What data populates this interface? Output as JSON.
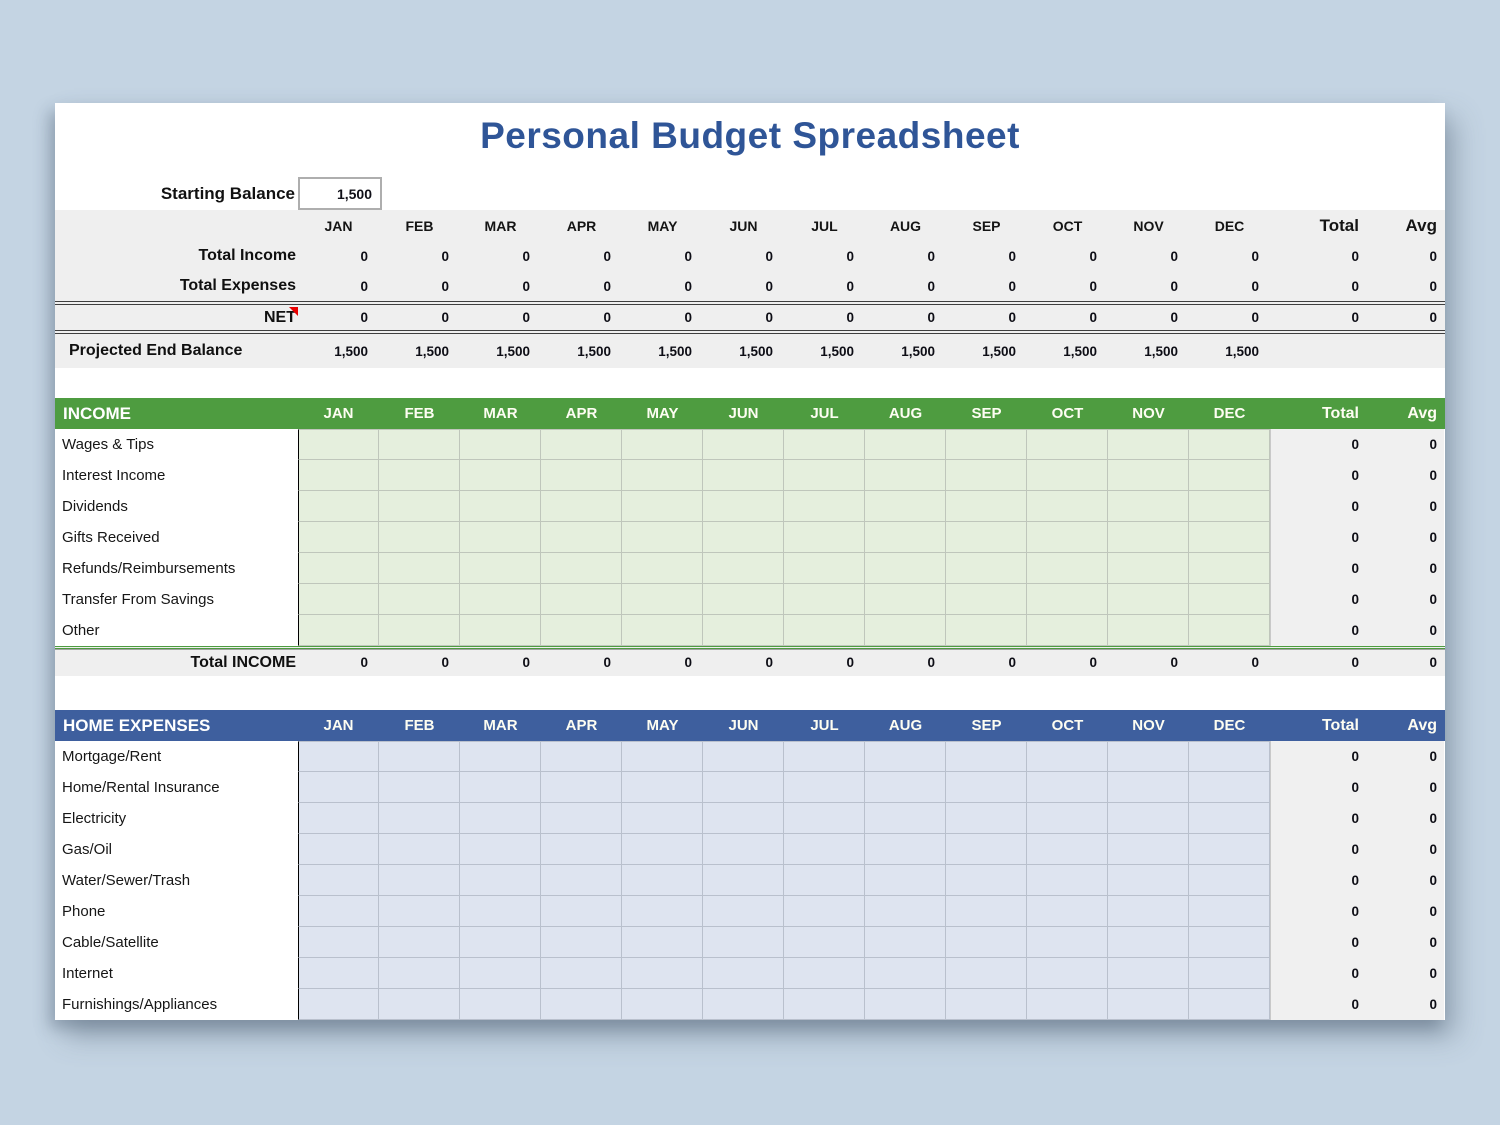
{
  "title": "Personal Budget Spreadsheet",
  "months": [
    "JAN",
    "FEB",
    "MAR",
    "APR",
    "MAY",
    "JUN",
    "JUL",
    "AUG",
    "SEP",
    "OCT",
    "NOV",
    "DEC"
  ],
  "labels": {
    "total": "Total",
    "avg": "Avg"
  },
  "starting_balance": {
    "label": "Starting Balance",
    "value": "1,500"
  },
  "summary": {
    "rows": [
      {
        "label": "Total Income",
        "values": [
          "0",
          "0",
          "0",
          "0",
          "0",
          "0",
          "0",
          "0",
          "0",
          "0",
          "0",
          "0"
        ],
        "total": "0",
        "avg": "0"
      },
      {
        "label": "Total Expenses",
        "values": [
          "0",
          "0",
          "0",
          "0",
          "0",
          "0",
          "0",
          "0",
          "0",
          "0",
          "0",
          "0"
        ],
        "total": "0",
        "avg": "0"
      },
      {
        "label": "NET",
        "values": [
          "0",
          "0",
          "0",
          "0",
          "0",
          "0",
          "0",
          "0",
          "0",
          "0",
          "0",
          "0"
        ],
        "total": "0",
        "avg": "0"
      }
    ],
    "projected": {
      "label": "Projected End Balance",
      "values": [
        "1,500",
        "1,500",
        "1,500",
        "1,500",
        "1,500",
        "1,500",
        "1,500",
        "1,500",
        "1,500",
        "1,500",
        "1,500",
        "1,500"
      ],
      "total": "",
      "avg": ""
    }
  },
  "income": {
    "header": "INCOME",
    "items": [
      {
        "label": "Wages & Tips",
        "total": "0",
        "avg": "0"
      },
      {
        "label": "Interest Income",
        "total": "0",
        "avg": "0"
      },
      {
        "label": "Dividends",
        "total": "0",
        "avg": "0"
      },
      {
        "label": "Gifts Received",
        "total": "0",
        "avg": "0"
      },
      {
        "label": "Refunds/Reimbursements",
        "total": "0",
        "avg": "0"
      },
      {
        "label": "Transfer From Savings",
        "total": "0",
        "avg": "0"
      },
      {
        "label": "Other",
        "total": "0",
        "avg": "0"
      }
    ],
    "total_row": {
      "label": "Total INCOME",
      "values": [
        "0",
        "0",
        "0",
        "0",
        "0",
        "0",
        "0",
        "0",
        "0",
        "0",
        "0",
        "0"
      ],
      "total": "0",
      "avg": "0"
    }
  },
  "expenses": {
    "header": "HOME EXPENSES",
    "items": [
      {
        "label": "Mortgage/Rent",
        "total": "0",
        "avg": "0"
      },
      {
        "label": "Home/Rental Insurance",
        "total": "0",
        "avg": "0"
      },
      {
        "label": "Electricity",
        "total": "0",
        "avg": "0"
      },
      {
        "label": "Gas/Oil",
        "total": "0",
        "avg": "0"
      },
      {
        "label": "Water/Sewer/Trash",
        "total": "0",
        "avg": "0"
      },
      {
        "label": "Phone",
        "total": "0",
        "avg": "0"
      },
      {
        "label": "Cable/Satellite",
        "total": "0",
        "avg": "0"
      },
      {
        "label": "Internet",
        "total": "0",
        "avg": "0"
      },
      {
        "label": "Furnishings/Appliances",
        "total": "0",
        "avg": "0"
      }
    ]
  },
  "colors": {
    "page_bg": "#c4d4e3",
    "title": "#2f5597",
    "band_bg": "#efefef",
    "green_header": "#4e9c40",
    "green_cell": "#e5efdd",
    "green_grid": "#bfc6bb",
    "blue_header": "#3e5f9e",
    "blue_cell": "#dee4f0",
    "blue_grid": "#b9c0cd",
    "totals_bg": "#f0f0f0"
  }
}
